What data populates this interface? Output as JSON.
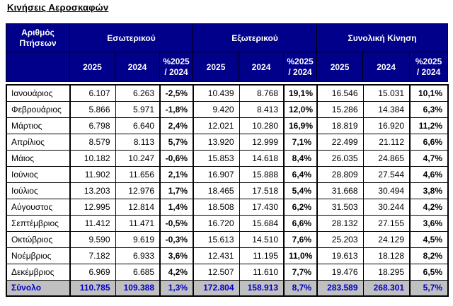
{
  "title": "Κινήσεις Αεροσκαφών",
  "table": {
    "corner_header": "Αριθμός Πτήσεων",
    "groups": [
      {
        "label": "Εσωτερικού"
      },
      {
        "label": "Εξωτερικού"
      },
      {
        "label": "Συνολική Κίνηση"
      }
    ],
    "sub_headers": [
      "2025",
      "2024",
      "%2025\n/ 2024"
    ],
    "rows": [
      {
        "month": "Ιανουάριος",
        "values": [
          "6.107",
          "6.263",
          "-2,5%",
          "10.439",
          "8.768",
          "19,1%",
          "16.546",
          "15.031",
          "10,1%"
        ]
      },
      {
        "month": "Φεβρουάριος",
        "values": [
          "5.866",
          "5.971",
          "-1,8%",
          "9.420",
          "8.413",
          "12,0%",
          "15.286",
          "14.384",
          "6,3%"
        ]
      },
      {
        "month": "Μάρτιος",
        "values": [
          "6.798",
          "6.640",
          "2,4%",
          "12.021",
          "10.280",
          "16,9%",
          "18.819",
          "16.920",
          "11,2%"
        ]
      },
      {
        "month": "Απρίλιος",
        "values": [
          "8.579",
          "8.113",
          "5,7%",
          "13.920",
          "12.999",
          "7,1%",
          "22.499",
          "21.112",
          "6,6%"
        ]
      },
      {
        "month": "Μάιος",
        "values": [
          "10.182",
          "10.247",
          "-0,6%",
          "15.853",
          "14.618",
          "8,4%",
          "26.035",
          "24.865",
          "4,7%"
        ]
      },
      {
        "month": "Ιούνιος",
        "values": [
          "11.902",
          "11.656",
          "2,1%",
          "16.907",
          "15.888",
          "6,4%",
          "28.809",
          "27.544",
          "4,6%"
        ]
      },
      {
        "month": "Ιούλιος",
        "values": [
          "13.203",
          "12.976",
          "1,7%",
          "18.465",
          "17.518",
          "5,4%",
          "31.668",
          "30.494",
          "3,8%"
        ]
      },
      {
        "month": "Αύγουστος",
        "values": [
          "12.995",
          "12.814",
          "1,4%",
          "18.508",
          "17.430",
          "6,2%",
          "31.503",
          "30.244",
          "4,2%"
        ]
      },
      {
        "month": "Σεπτέμβριος",
        "values": [
          "11.412",
          "11.471",
          "-0,5%",
          "16.720",
          "15.684",
          "6,6%",
          "28.132",
          "27.155",
          "3,6%"
        ]
      },
      {
        "month": "Οκτώβριος",
        "values": [
          "9.590",
          "9.619",
          "-0,3%",
          "15.613",
          "14.510",
          "7,6%",
          "25.203",
          "24.129",
          "4,5%"
        ]
      },
      {
        "month": "Νοέμβριος",
        "values": [
          "7.182",
          "6.933",
          "3,6%",
          "12.431",
          "11.195",
          "11,0%",
          "19.613",
          "18.128",
          "8,2%"
        ]
      },
      {
        "month": "Δεκέμβριος",
        "values": [
          "6.969",
          "6.685",
          "4,2%",
          "12.507",
          "11.610",
          "7,7%",
          "19.476",
          "18.295",
          "6,5%"
        ]
      }
    ],
    "total_row": {
      "label": "Σύνολο",
      "values": [
        "110.785",
        "109.388",
        "1,3%",
        "172.804",
        "158.913",
        "8,7%",
        "283.589",
        "268.301",
        "5,7%"
      ]
    }
  },
  "colors": {
    "header_bg": "#00008B",
    "header_text": "#FFFFFF",
    "total_bg": "#C0C0C0",
    "total_text": "#0000CC",
    "body_text": "#000000",
    "border": "#000000"
  }
}
